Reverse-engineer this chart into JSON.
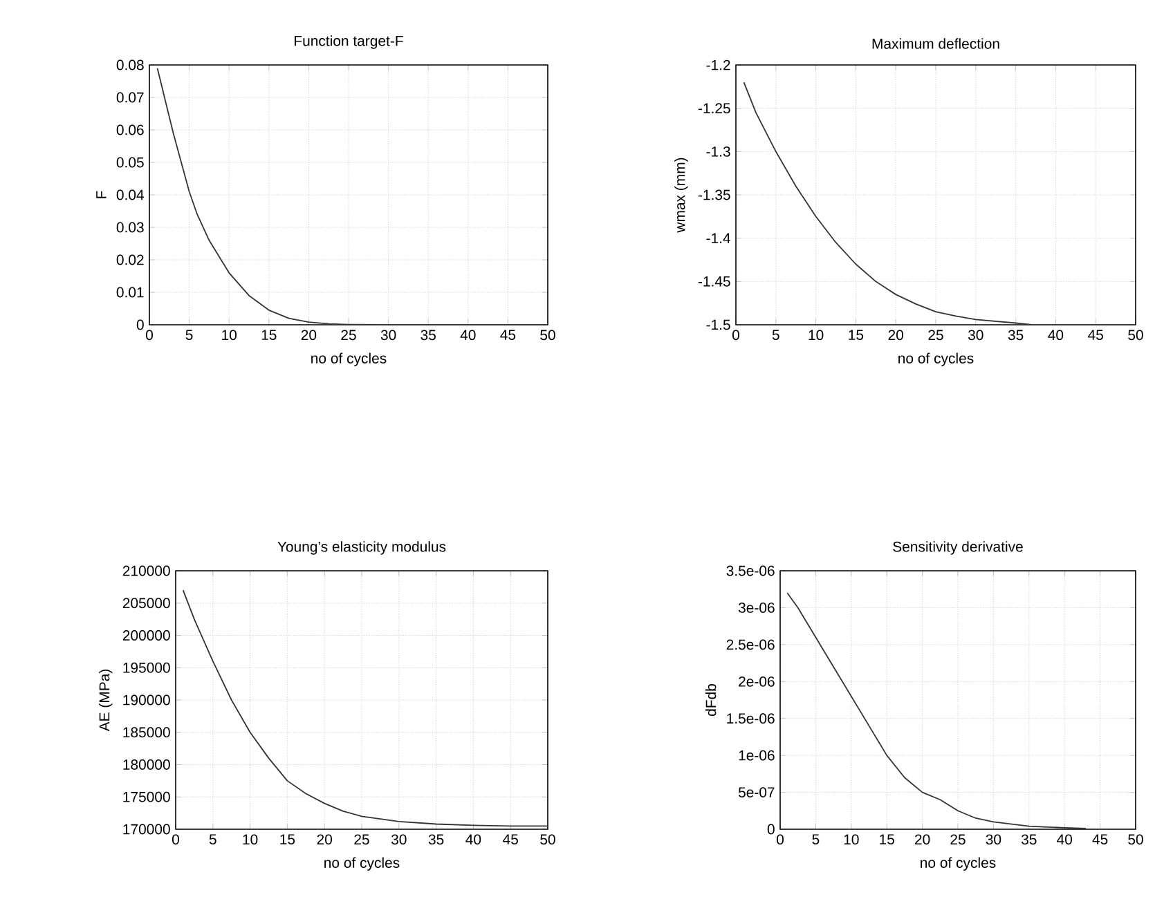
{
  "chart_data": [
    {
      "type": "line",
      "title": "Function target-F",
      "xlabel": "no of cycles",
      "ylabel": "F",
      "color": "#333333",
      "grid": true,
      "x": [
        1,
        2,
        3,
        4,
        5,
        6,
        7.5,
        9,
        10,
        12.5,
        15,
        17.5,
        20,
        22.5,
        25,
        30,
        35,
        40,
        45,
        50
      ],
      "values": [
        0.079,
        0.069,
        0.059,
        0.05,
        0.041,
        0.034,
        0.026,
        0.02,
        0.016,
        0.009,
        0.0045,
        0.002,
        0.0008,
        0.0003,
        0.0001,
        0,
        0,
        0,
        0,
        0
      ],
      "xlim": [
        0,
        50
      ],
      "ylim": [
        0,
        0.08
      ],
      "xticks": [
        0,
        5,
        10,
        15,
        20,
        25,
        30,
        35,
        40,
        45,
        50
      ],
      "yticks": [
        0,
        0.01,
        0.02,
        0.03,
        0.04,
        0.05,
        0.06,
        0.07,
        0.08
      ]
    },
    {
      "type": "line",
      "title": "Maximum deflection",
      "xlabel": "no of cycles",
      "ylabel": "wmax (mm)",
      "color": "#333333",
      "grid": true,
      "x": [
        1,
        2.5,
        5,
        7.5,
        10,
        12.5,
        15,
        17.5,
        20,
        22.5,
        25,
        27.5,
        30,
        32.5,
        35,
        37
      ],
      "values": [
        -1.22,
        -1.255,
        -1.3,
        -1.34,
        -1.375,
        -1.405,
        -1.43,
        -1.45,
        -1.465,
        -1.476,
        -1.485,
        -1.49,
        -1.494,
        -1.496,
        -1.498,
        -1.5
      ],
      "xlim": [
        0,
        50
      ],
      "ylim": [
        -1.5,
        -1.2
      ],
      "xticks": [
        0,
        5,
        10,
        15,
        20,
        25,
        30,
        35,
        40,
        45,
        50
      ],
      "yticks": [
        -1.5,
        -1.45,
        -1.4,
        -1.35,
        -1.3,
        -1.25,
        -1.2
      ]
    },
    {
      "type": "line",
      "title": "Young’s elasticity modulus",
      "xlabel": "no of cycles",
      "ylabel": "AE (MPa)",
      "color": "#333333",
      "grid": true,
      "x": [
        1,
        2.5,
        5,
        7.5,
        10,
        12.5,
        15,
        17.5,
        20,
        22.5,
        25,
        30,
        35,
        40,
        45,
        50
      ],
      "values": [
        207000,
        202500,
        196000,
        190000,
        185000,
        181000,
        177500,
        175500,
        174000,
        172800,
        172000,
        171200,
        170800,
        170600,
        170500,
        170500
      ],
      "xlim": [
        0,
        50
      ],
      "ylim": [
        170000,
        210000
      ],
      "xticks": [
        0,
        5,
        10,
        15,
        20,
        25,
        30,
        35,
        40,
        45,
        50
      ],
      "yticks": [
        170000,
        175000,
        180000,
        185000,
        190000,
        195000,
        200000,
        205000,
        210000
      ]
    },
    {
      "type": "line",
      "title": "Sensitivity derivative",
      "xlabel": "no of cycles",
      "ylabel": "dFdb",
      "color": "#333333",
      "grid": true,
      "x": [
        1,
        2.5,
        5,
        7.5,
        10,
        12.5,
        15,
        17.5,
        20,
        22.5,
        25,
        27.5,
        30,
        35,
        40,
        43
      ],
      "values": [
        3.2e-06,
        3e-06,
        2.6e-06,
        2.2e-06,
        1.8e-06,
        1.4e-06,
        1e-06,
        7e-07,
        5e-07,
        4e-07,
        2.5e-07,
        1.5e-07,
        1e-07,
        4e-08,
        2e-08,
        1e-08
      ],
      "xlim": [
        0,
        50
      ],
      "ylim": [
        0,
        3.5e-06
      ],
      "xticks": [
        0,
        5,
        10,
        15,
        20,
        25,
        30,
        35,
        40,
        45,
        50
      ],
      "yticks": [
        0,
        {
          "value": 5e-07,
          "label": "5e-07"
        },
        {
          "value": 1e-06,
          "label": "1e-06"
        },
        {
          "value": 1.5e-06,
          "label": "1.5e-06"
        },
        {
          "value": 2e-06,
          "label": "2e-06"
        },
        {
          "value": 2.5e-06,
          "label": "2.5e-06"
        },
        {
          "value": 3e-06,
          "label": "3e-06"
        },
        {
          "value": 3.5e-06,
          "label": "3.5e-06"
        }
      ]
    }
  ]
}
